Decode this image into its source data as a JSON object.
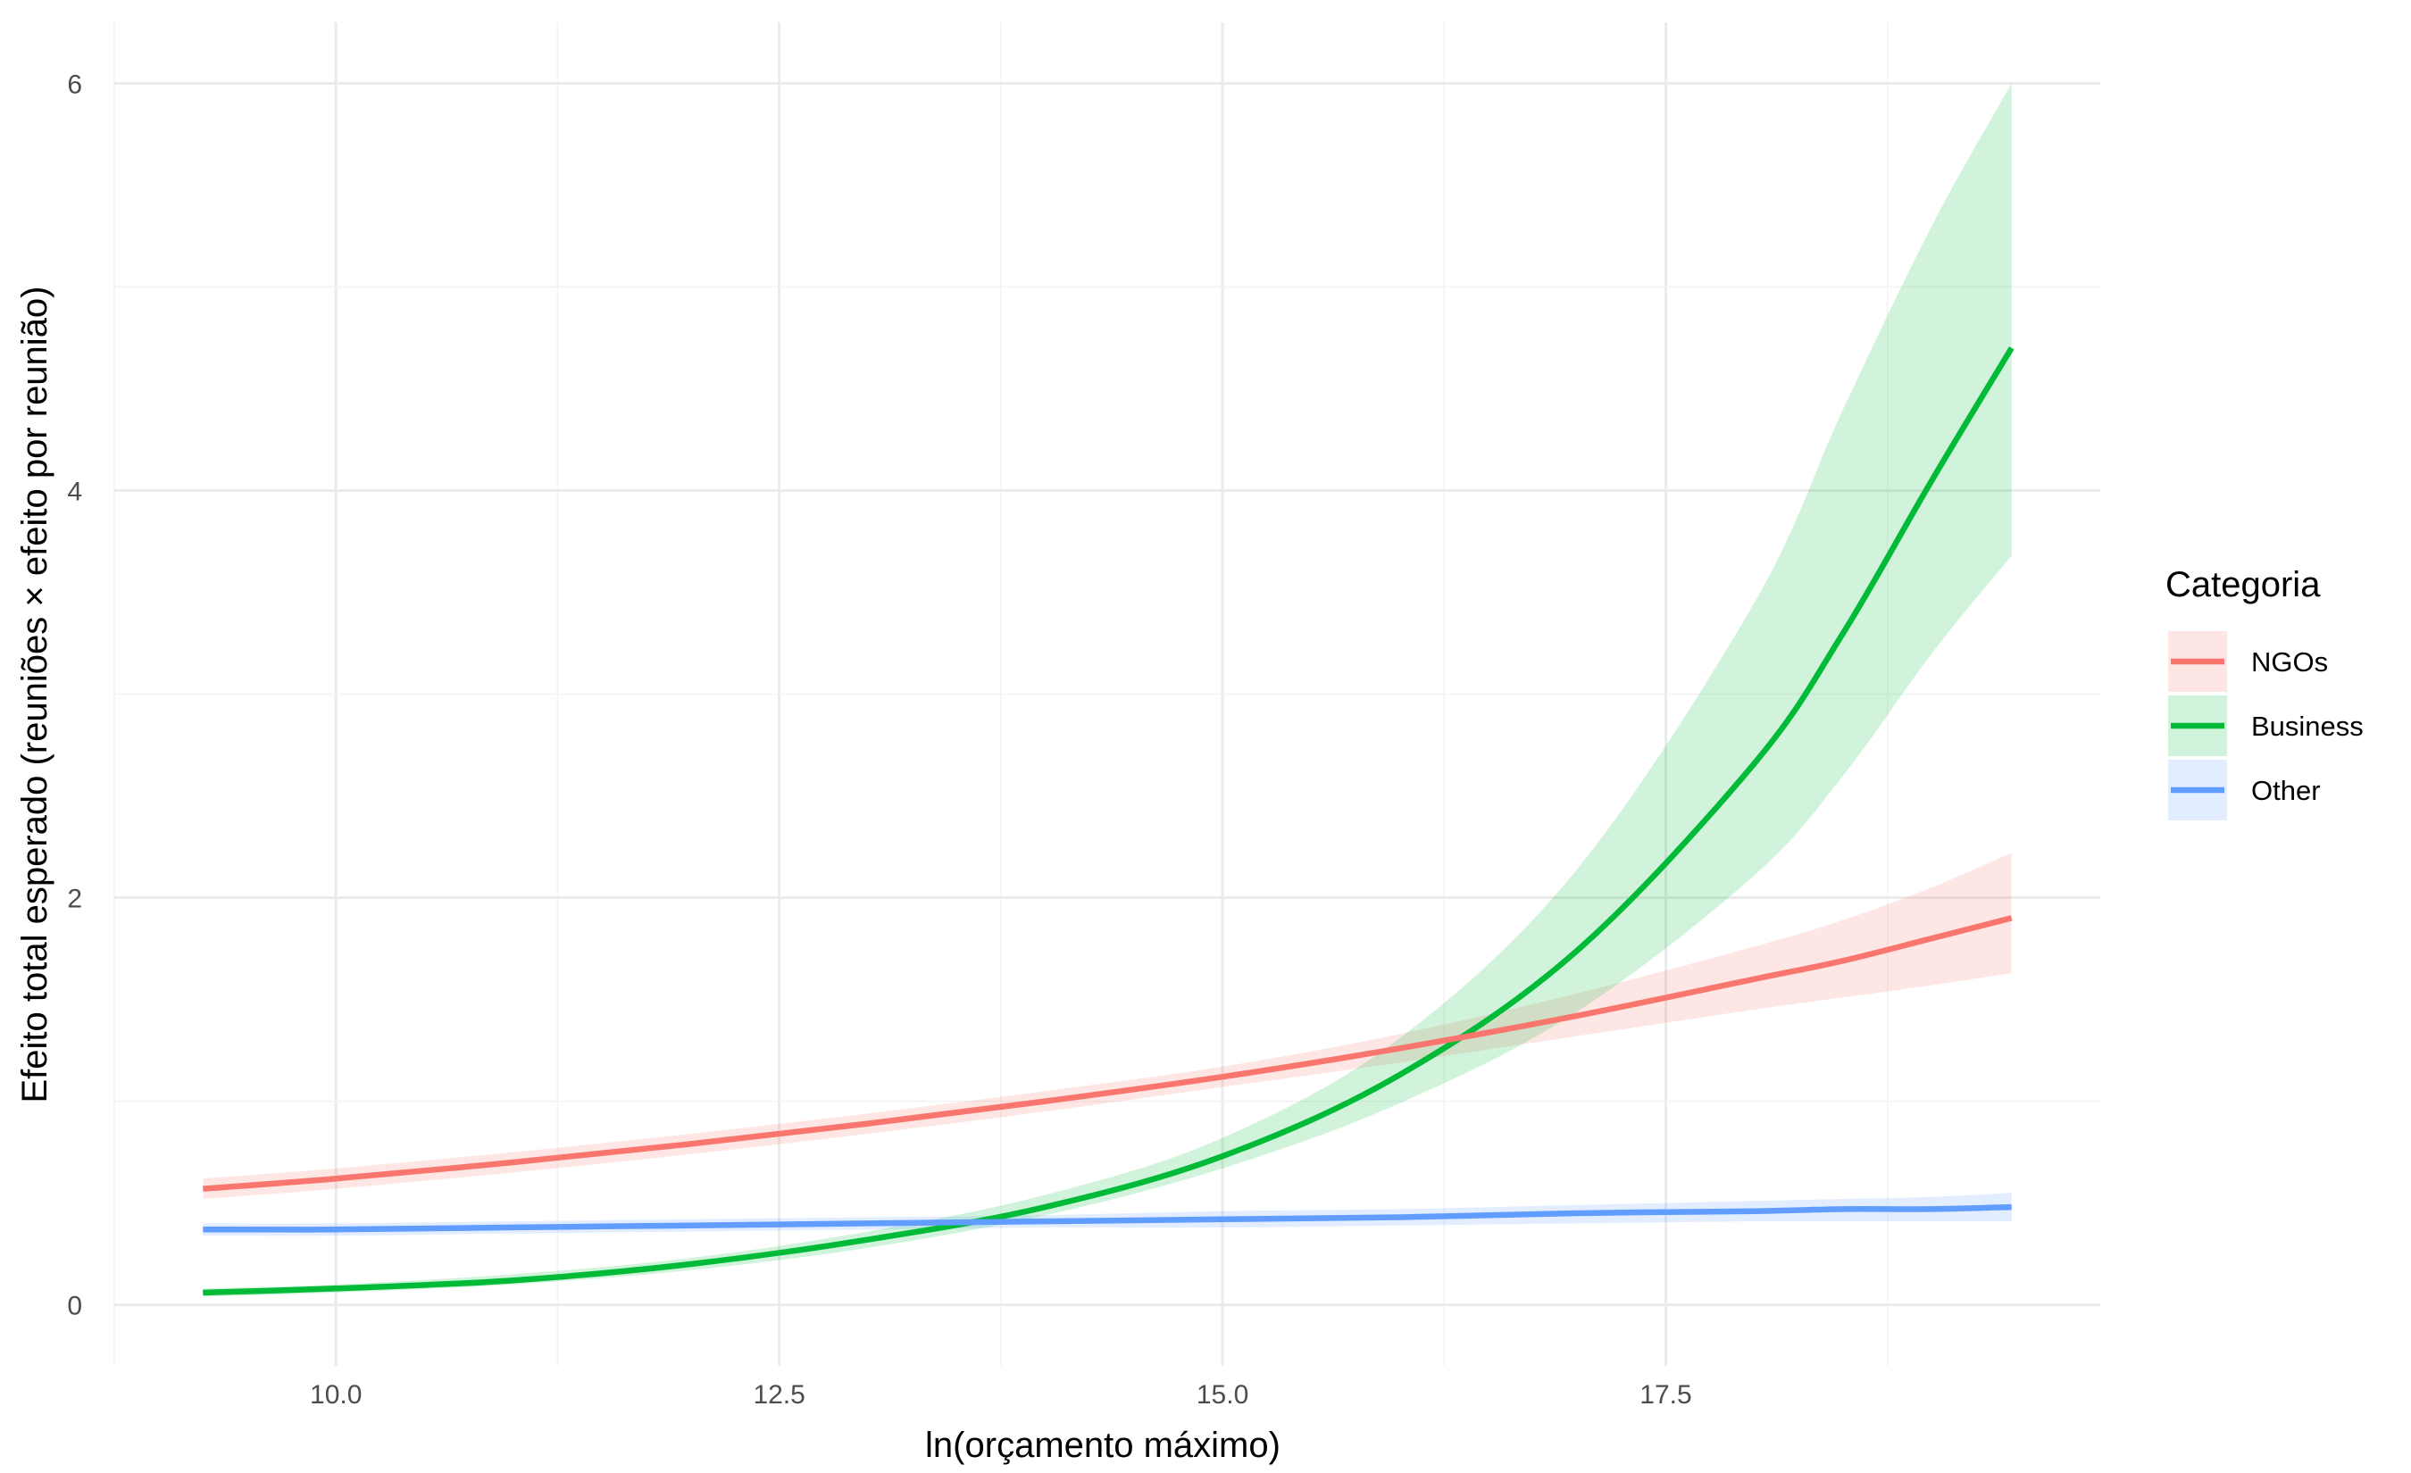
{
  "chart_data": {
    "type": "line",
    "title": "",
    "xlabel": "ln(orçamento máximo)",
    "ylabel": "Efeito total esperado (reuniões × efeito por reunião)",
    "xlim": [
      8.75,
      19.95
    ],
    "ylim": [
      -0.3,
      6.3
    ],
    "x_ticks": [
      10.0,
      12.5,
      15.0,
      17.5
    ],
    "x_tick_labels": [
      "10.0",
      "12.5",
      "15.0",
      "17.5"
    ],
    "y_ticks": [
      0,
      2,
      4,
      6
    ],
    "y_tick_labels": [
      "0",
      "2",
      "4",
      "6"
    ],
    "grid": true,
    "legend": {
      "title": "Categoria",
      "position": "right"
    },
    "x": [
      9.25,
      10.0,
      11.0,
      12.0,
      13.0,
      14.0,
      15.0,
      16.0,
      17.0,
      18.0,
      18.5,
      19.0,
      19.45
    ],
    "series": [
      {
        "name": "NGOs",
        "color": "#F8766D",
        "values": [
          0.57,
          0.62,
          0.7,
          0.79,
          0.89,
          1.0,
          1.12,
          1.26,
          1.42,
          1.6,
          1.69,
          1.8,
          1.9
        ],
        "lower": [
          0.52,
          0.57,
          0.65,
          0.74,
          0.84,
          0.95,
          1.07,
          1.19,
          1.32,
          1.45,
          1.51,
          1.57,
          1.63
        ],
        "upper": [
          0.62,
          0.67,
          0.75,
          0.84,
          0.94,
          1.05,
          1.17,
          1.33,
          1.53,
          1.76,
          1.89,
          2.05,
          2.22
        ]
      },
      {
        "name": "Business",
        "color": "#00BA38",
        "values": [
          0.06,
          0.08,
          0.12,
          0.2,
          0.32,
          0.48,
          0.73,
          1.13,
          1.74,
          2.66,
          3.3,
          4.05,
          4.7
        ],
        "lower": [
          0.04,
          0.06,
          0.1,
          0.17,
          0.28,
          0.44,
          0.67,
          0.99,
          1.44,
          2.11,
          2.6,
          3.2,
          3.68
        ],
        "upper": [
          0.08,
          0.1,
          0.15,
          0.23,
          0.36,
          0.54,
          0.82,
          1.31,
          2.14,
          3.45,
          4.4,
          5.3,
          6.0
        ]
      },
      {
        "name": "Other",
        "color": "#619CFF",
        "values": [
          0.37,
          0.37,
          0.38,
          0.39,
          0.4,
          0.41,
          0.42,
          0.43,
          0.45,
          0.46,
          0.47,
          0.47,
          0.48
        ],
        "lower": [
          0.34,
          0.34,
          0.35,
          0.36,
          0.37,
          0.38,
          0.38,
          0.39,
          0.4,
          0.41,
          0.41,
          0.41,
          0.41
        ],
        "upper": [
          0.4,
          0.4,
          0.41,
          0.42,
          0.43,
          0.44,
          0.46,
          0.47,
          0.49,
          0.51,
          0.52,
          0.53,
          0.55
        ]
      }
    ]
  }
}
